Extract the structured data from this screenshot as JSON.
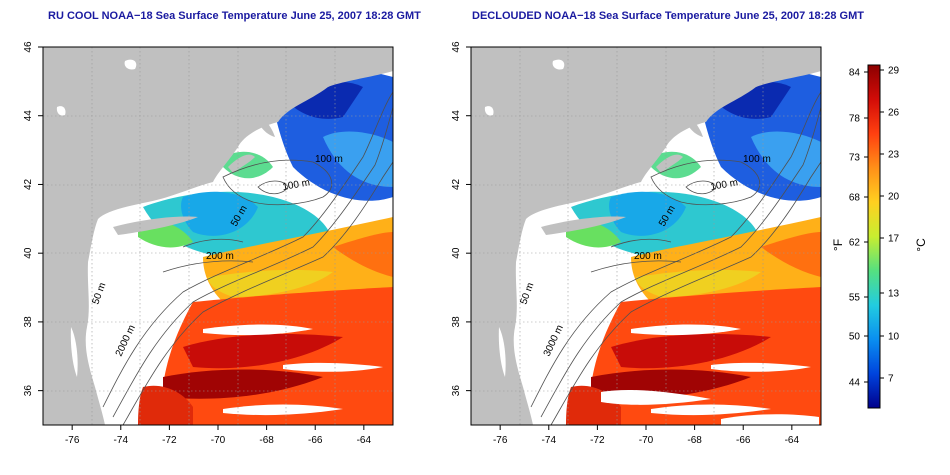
{
  "panels": [
    {
      "title": "RU COOL NOAA−18 Sea Surface Temperature June 25, 2007 18:28 GMT",
      "contour_labels": [
        "100 m",
        "100 m",
        "50 m",
        "200 m",
        "50 m",
        "2000 m"
      ]
    },
    {
      "title": "DECLOUDED NOAA−18 Sea Surface Temperature June 25, 2007 18:28 GMT",
      "contour_labels": [
        "100 m",
        "100 m",
        "50 m",
        "200 m",
        "50 m",
        "3000 m"
      ]
    }
  ],
  "axes": {
    "lon_ticks": [
      "-76",
      "-74",
      "-72",
      "-70",
      "-68",
      "-66",
      "-64"
    ],
    "lat_ticks": [
      "46",
      "44",
      "42",
      "40",
      "38",
      "36"
    ],
    "lon_range": [
      -77.2,
      -62.8
    ],
    "lat_range": [
      35.0,
      46.0
    ]
  },
  "colorbar": {
    "fahrenheit_ticks": [
      "84",
      "78",
      "73",
      "68",
      "62",
      "55",
      "50",
      "44"
    ],
    "celsius_ticks": [
      "29",
      "26",
      "23",
      "20",
      "17",
      "13",
      "10",
      "7"
    ],
    "unit_f": "°F",
    "unit_c": "°C",
    "colors": [
      "#00008c",
      "#0044dd",
      "#0a8ff0",
      "#22cce0",
      "#55e080",
      "#c8ee30",
      "#ffd020",
      "#ff9018",
      "#ff4010",
      "#d20c08",
      "#8c0000"
    ]
  },
  "colors": {
    "land": "#c0c0c0",
    "title": "#1a1aa0",
    "contour": "#505050",
    "grid": "#999999"
  }
}
